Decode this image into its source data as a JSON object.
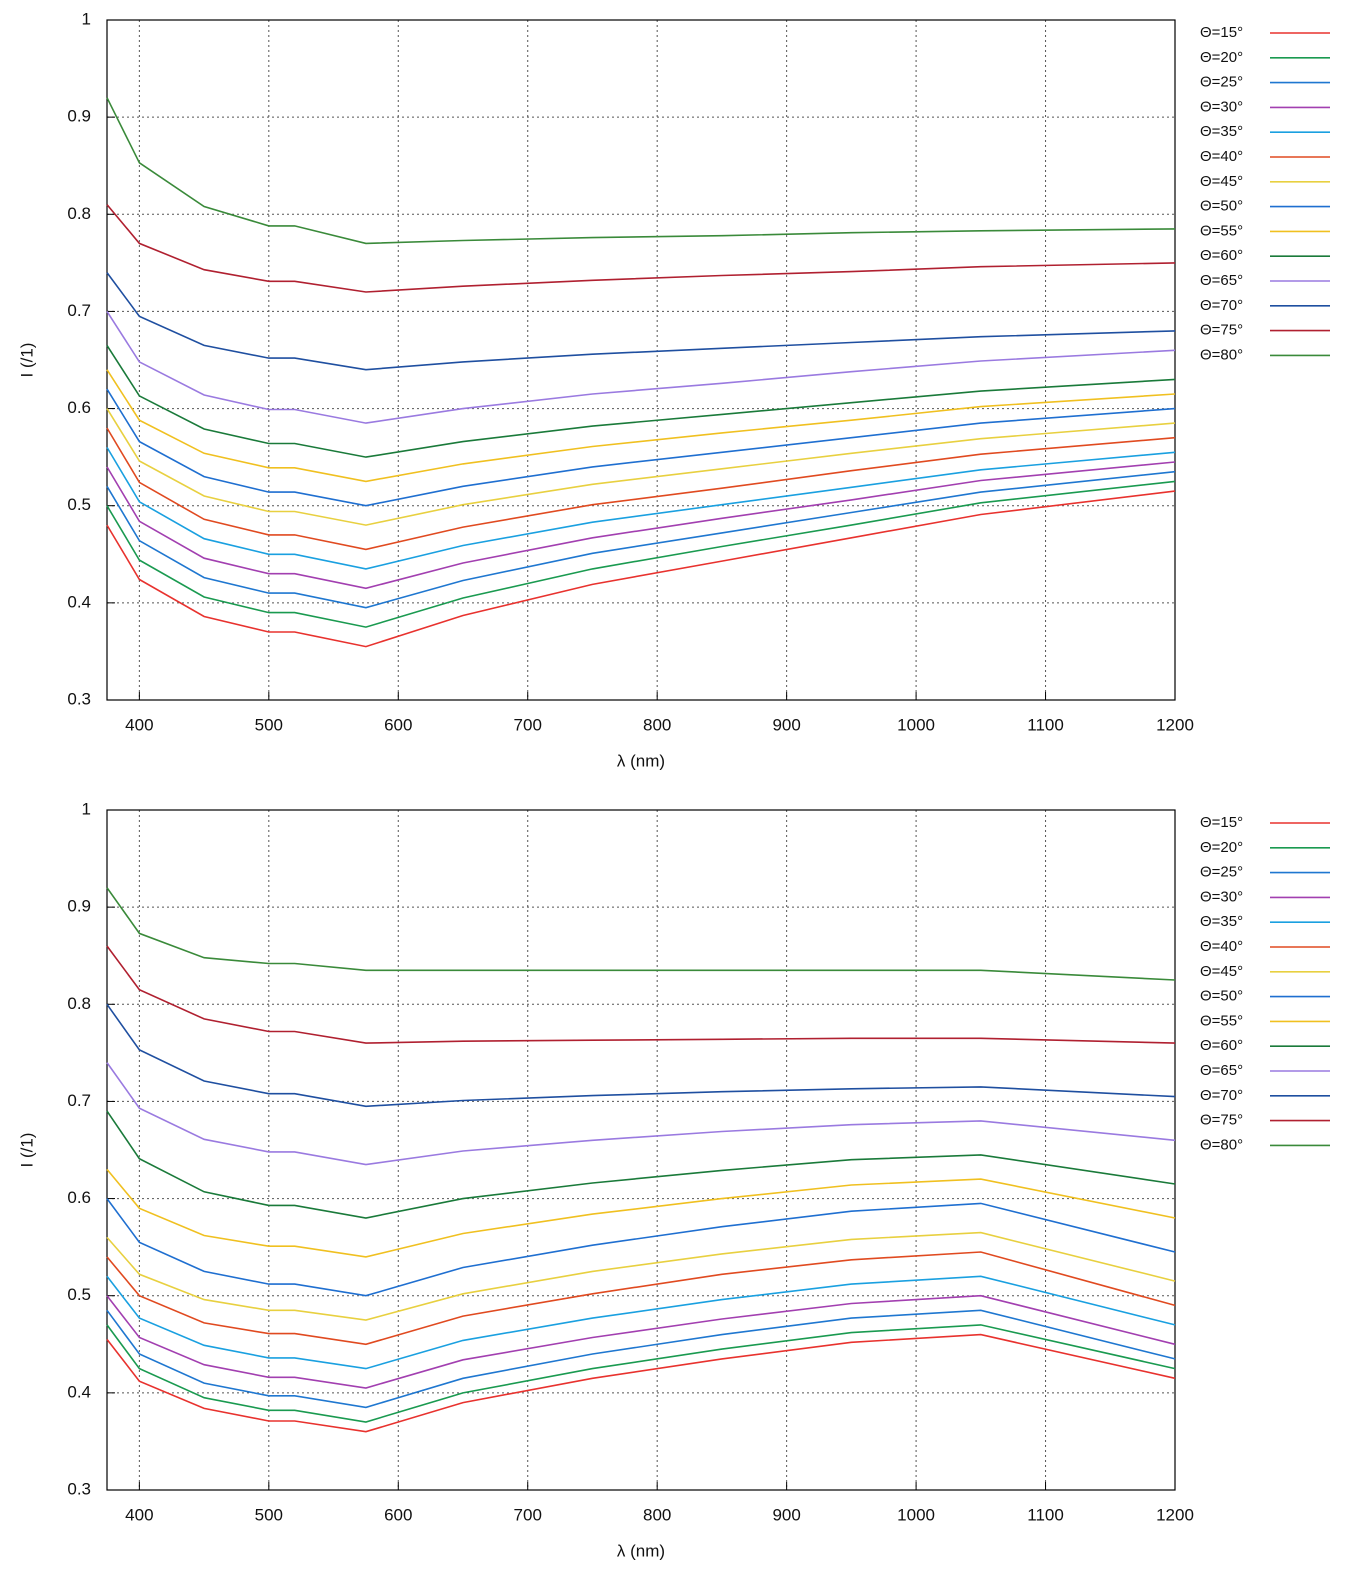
{
  "chart_data": [
    {
      "type": "line",
      "xlabel": "λ (nm)",
      "ylabel": "I (/1)",
      "x": [
        375,
        400,
        450,
        500,
        520,
        575,
        650,
        750,
        850,
        950,
        1050,
        1200
      ],
      "xlim": [
        375,
        1200
      ],
      "xticks": [
        400,
        500,
        600,
        700,
        800,
        900,
        1000,
        1100,
        1200
      ],
      "ylim": [
        0.3,
        1
      ],
      "yticks": [
        0.3,
        0.4,
        0.5,
        0.6,
        0.7,
        0.8,
        0.9,
        1
      ],
      "grid": true,
      "legend": "outside-right",
      "series": [
        {
          "name": "Θ=15°",
          "color": "#e8322e",
          "values": [
            0.48,
            0.424,
            0.386,
            0.37,
            0.37,
            0.355,
            0.387,
            0.419,
            0.443,
            0.467,
            0.491,
            0.515
          ]
        },
        {
          "name": "Θ=20°",
          "color": "#1a9a50",
          "values": [
            0.5,
            0.444,
            0.406,
            0.39,
            0.39,
            0.375,
            0.405,
            0.435,
            0.458,
            0.48,
            0.503,
            0.525
          ]
        },
        {
          "name": "Θ=25°",
          "color": "#1f77d0",
          "values": [
            0.52,
            0.464,
            0.426,
            0.41,
            0.41,
            0.395,
            0.423,
            0.451,
            0.472,
            0.493,
            0.514,
            0.535
          ]
        },
        {
          "name": "Θ=30°",
          "color": "#a23fb0",
          "values": [
            0.54,
            0.484,
            0.446,
            0.43,
            0.43,
            0.415,
            0.441,
            0.467,
            0.487,
            0.506,
            0.526,
            0.545
          ]
        },
        {
          "name": "Θ=35°",
          "color": "#1aa0e0",
          "values": [
            0.56,
            0.504,
            0.466,
            0.45,
            0.45,
            0.435,
            0.459,
            0.483,
            0.501,
            0.519,
            0.537,
            0.555
          ]
        },
        {
          "name": "Θ=40°",
          "color": "#e04a20",
          "values": [
            0.58,
            0.524,
            0.486,
            0.47,
            0.47,
            0.455,
            0.478,
            0.501,
            0.518,
            0.536,
            0.553,
            0.57
          ]
        },
        {
          "name": "Θ=45°",
          "color": "#e8d040",
          "values": [
            0.6,
            0.546,
            0.51,
            0.494,
            0.494,
            0.48,
            0.501,
            0.522,
            0.538,
            0.554,
            0.569,
            0.585
          ]
        },
        {
          "name": "Θ=50°",
          "color": "#1f6fd0",
          "values": [
            0.62,
            0.566,
            0.53,
            0.514,
            0.514,
            0.5,
            0.52,
            0.54,
            0.555,
            0.57,
            0.585,
            0.6
          ]
        },
        {
          "name": "Θ=55°",
          "color": "#f0c020",
          "values": [
            0.64,
            0.588,
            0.554,
            0.539,
            0.539,
            0.525,
            0.543,
            0.561,
            0.575,
            0.588,
            0.602,
            0.615
          ]
        },
        {
          "name": "Θ=60°",
          "color": "#1a7a3a",
          "values": [
            0.665,
            0.613,
            0.579,
            0.564,
            0.564,
            0.55,
            0.566,
            0.582,
            0.594,
            0.606,
            0.618,
            0.63
          ]
        },
        {
          "name": "Θ=65°",
          "color": "#9a7ae0",
          "values": [
            0.7,
            0.648,
            0.614,
            0.599,
            0.599,
            0.585,
            0.6,
            0.615,
            0.626,
            0.638,
            0.649,
            0.66
          ]
        },
        {
          "name": "Θ=70°",
          "color": "#1f4fa0",
          "values": [
            0.74,
            0.695,
            0.665,
            0.652,
            0.652,
            0.64,
            0.648,
            0.656,
            0.662,
            0.668,
            0.674,
            0.68
          ]
        },
        {
          "name": "Θ=75°",
          "color": "#b02030",
          "values": [
            0.81,
            0.77,
            0.743,
            0.731,
            0.731,
            0.72,
            0.726,
            0.732,
            0.737,
            0.741,
            0.746,
            0.75
          ]
        },
        {
          "name": "Θ=80°",
          "color": "#3a8a3a",
          "values": [
            0.92,
            0.853,
            0.808,
            0.788,
            0.788,
            0.77,
            0.773,
            0.776,
            0.778,
            0.781,
            0.783,
            0.785
          ]
        }
      ]
    },
    {
      "type": "line",
      "xlabel": "λ (nm)",
      "ylabel": "I (/1)",
      "x": [
        375,
        400,
        450,
        500,
        520,
        575,
        650,
        750,
        850,
        950,
        1050,
        1200
      ],
      "xlim": [
        375,
        1200
      ],
      "xticks": [
        400,
        500,
        600,
        700,
        800,
        900,
        1000,
        1100,
        1200
      ],
      "ylim": [
        0.3,
        1
      ],
      "yticks": [
        0.3,
        0.4,
        0.5,
        0.6,
        0.7,
        0.8,
        0.9,
        1
      ],
      "grid": true,
      "legend": "outside-right",
      "series": [
        {
          "name": "Θ=15°",
          "color": "#e8322e",
          "values": [
            0.455,
            0.412,
            0.384,
            0.371,
            0.371,
            0.36,
            0.39,
            0.415,
            0.435,
            0.452,
            0.46,
            0.415
          ]
        },
        {
          "name": "Θ=20°",
          "color": "#1a9a50",
          "values": [
            0.47,
            0.425,
            0.395,
            0.382,
            0.382,
            0.37,
            0.4,
            0.425,
            0.445,
            0.462,
            0.47,
            0.425
          ]
        },
        {
          "name": "Θ=25°",
          "color": "#1f77d0",
          "values": [
            0.485,
            0.44,
            0.41,
            0.397,
            0.397,
            0.385,
            0.415,
            0.44,
            0.46,
            0.477,
            0.485,
            0.435
          ]
        },
        {
          "name": "Θ=30°",
          "color": "#a23fb0",
          "values": [
            0.5,
            0.457,
            0.429,
            0.416,
            0.416,
            0.405,
            0.434,
            0.457,
            0.476,
            0.492,
            0.5,
            0.45
          ]
        },
        {
          "name": "Θ=35°",
          "color": "#1aa0e0",
          "values": [
            0.52,
            0.477,
            0.449,
            0.436,
            0.436,
            0.425,
            0.454,
            0.477,
            0.496,
            0.512,
            0.52,
            0.47
          ]
        },
        {
          "name": "Θ=40°",
          "color": "#e04a20",
          "values": [
            0.54,
            0.5,
            0.472,
            0.461,
            0.461,
            0.45,
            0.479,
            0.502,
            0.522,
            0.537,
            0.545,
            0.49
          ]
        },
        {
          "name": "Θ=45°",
          "color": "#e8d040",
          "values": [
            0.56,
            0.522,
            0.496,
            0.485,
            0.485,
            0.475,
            0.502,
            0.525,
            0.543,
            0.558,
            0.565,
            0.515
          ]
        },
        {
          "name": "Θ=50°",
          "color": "#1f6fd0",
          "values": [
            0.6,
            0.555,
            0.525,
            0.512,
            0.512,
            0.5,
            0.529,
            0.552,
            0.571,
            0.587,
            0.595,
            0.545
          ]
        },
        {
          "name": "Θ=55°",
          "color": "#f0c020",
          "values": [
            0.63,
            0.59,
            0.562,
            0.551,
            0.551,
            0.54,
            0.564,
            0.584,
            0.6,
            0.614,
            0.62,
            0.58
          ]
        },
        {
          "name": "Θ=60°",
          "color": "#1a7a3a",
          "values": [
            0.69,
            0.641,
            0.607,
            0.593,
            0.593,
            0.58,
            0.6,
            0.616,
            0.629,
            0.64,
            0.645,
            0.615
          ]
        },
        {
          "name": "Θ=65°",
          "color": "#9a7ae0",
          "values": [
            0.74,
            0.693,
            0.661,
            0.648,
            0.648,
            0.635,
            0.649,
            0.66,
            0.669,
            0.676,
            0.68,
            0.66
          ]
        },
        {
          "name": "Θ=70°",
          "color": "#1f4fa0",
          "values": [
            0.8,
            0.753,
            0.721,
            0.708,
            0.708,
            0.695,
            0.701,
            0.706,
            0.71,
            0.713,
            0.715,
            0.705
          ]
        },
        {
          "name": "Θ=75°",
          "color": "#b02030",
          "values": [
            0.86,
            0.815,
            0.785,
            0.772,
            0.772,
            0.76,
            0.762,
            0.763,
            0.764,
            0.765,
            0.765,
            0.76
          ]
        },
        {
          "name": "Θ=80°",
          "color": "#3a8a3a",
          "values": [
            0.92,
            0.873,
            0.848,
            0.842,
            0.842,
            0.835,
            0.835,
            0.835,
            0.835,
            0.835,
            0.835,
            0.825
          ]
        }
      ]
    }
  ]
}
